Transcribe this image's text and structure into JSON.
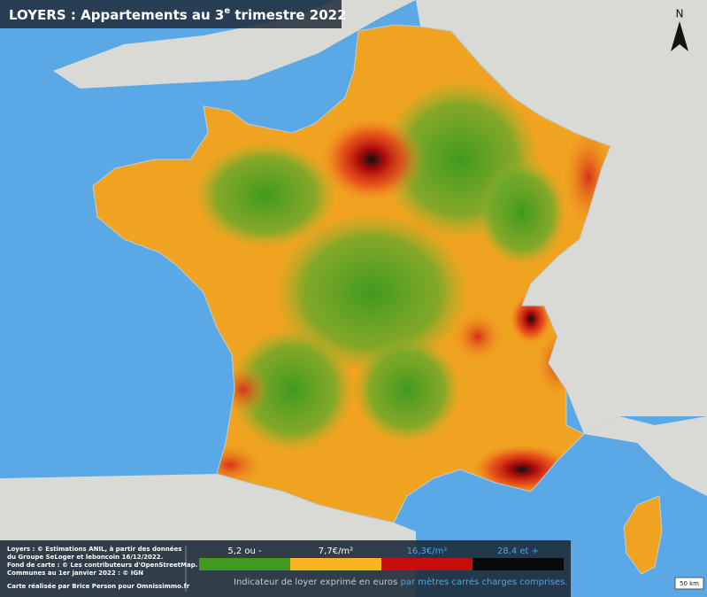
{
  "title": {
    "text": "LOYERS : Appartements au 3",
    "superscript": "e",
    "rest": " trimestre 2022"
  },
  "north": "N",
  "credits": [
    "Loyers : © Estimations ANIL, à partir des données",
    "du Groupe SeLoger et leboncoin 16/12/2022.",
    "Fond de carte : © Les contributeurs d'OpenStreetMap.",
    "Communes au 1er janvier 2022 : © IGN",
    "Carte réalisée par Brice Person pour Omnissimmo.fr"
  ],
  "legend": {
    "items": [
      {
        "label": "5,2 ou -",
        "color": "#3f9a1f",
        "label_color": "#ffffff"
      },
      {
        "label": "7,7€/m²",
        "color": "#f7b322",
        "label_color": "#ffffff"
      },
      {
        "label": "16,3€/m²",
        "color": "#c80d0d",
        "label_color": "#4aa6e0"
      },
      {
        "label": "28,4 et +",
        "color": "#0a0a0a",
        "label_color": "#4aa6e0"
      }
    ],
    "caption_start": "Indicateur de loyer exprimé en euros ",
    "caption_end": "par mètres carrés charges comprises."
  },
  "scale": "50 km"
}
